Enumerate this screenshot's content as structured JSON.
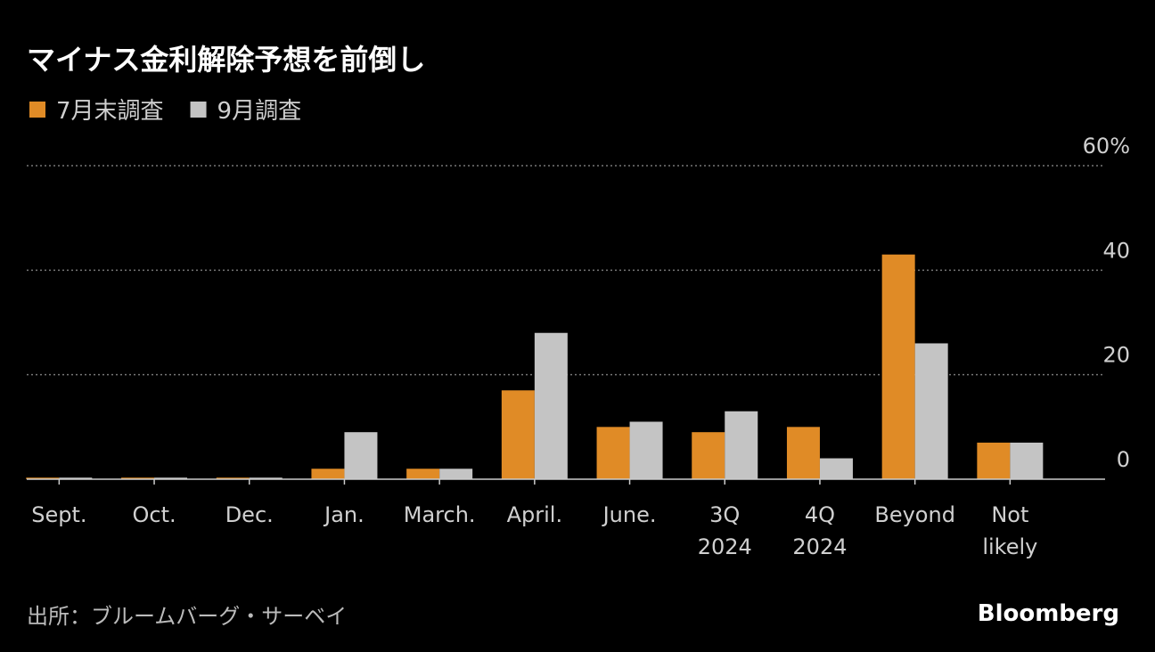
{
  "chart_data": {
    "type": "bar",
    "title": "マイナス金利解除予想を前倒し",
    "categories": [
      "Sept.",
      "Oct.",
      "Dec.",
      "Jan.",
      "March.",
      "April.",
      "June.",
      "3Q 2024",
      "4Q 2024",
      "Beyond",
      "Not likely"
    ],
    "series": [
      {
        "name": "7月末調査",
        "color": "#e08b26",
        "values": [
          0.3,
          0.3,
          0.3,
          2,
          2,
          17,
          10,
          9,
          10,
          43,
          7
        ]
      },
      {
        "name": "9月調査",
        "color": "#c4c4c4",
        "values": [
          0.3,
          0.3,
          0.3,
          9,
          2,
          28,
          11,
          13,
          4,
          26,
          7
        ]
      }
    ],
    "ylim": [
      0,
      60
    ],
    "yticks": [
      0,
      20,
      40,
      {
        "value": 60,
        "label": "60%"
      }
    ],
    "grid": true,
    "source": "出所：ブルームバーグ・サーベイ",
    "brand": "Bloomberg"
  }
}
